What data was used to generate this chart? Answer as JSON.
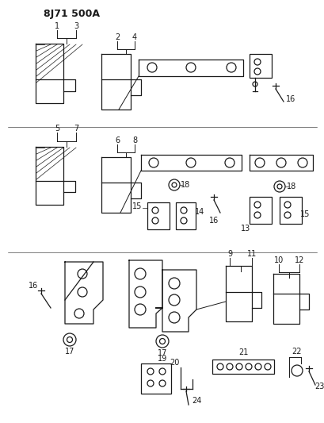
{
  "title": "8J71 500A",
  "bg": "#ffffff",
  "lc": "#1a1a1a",
  "fw": 4.1,
  "fh": 5.33,
  "dpi": 100
}
